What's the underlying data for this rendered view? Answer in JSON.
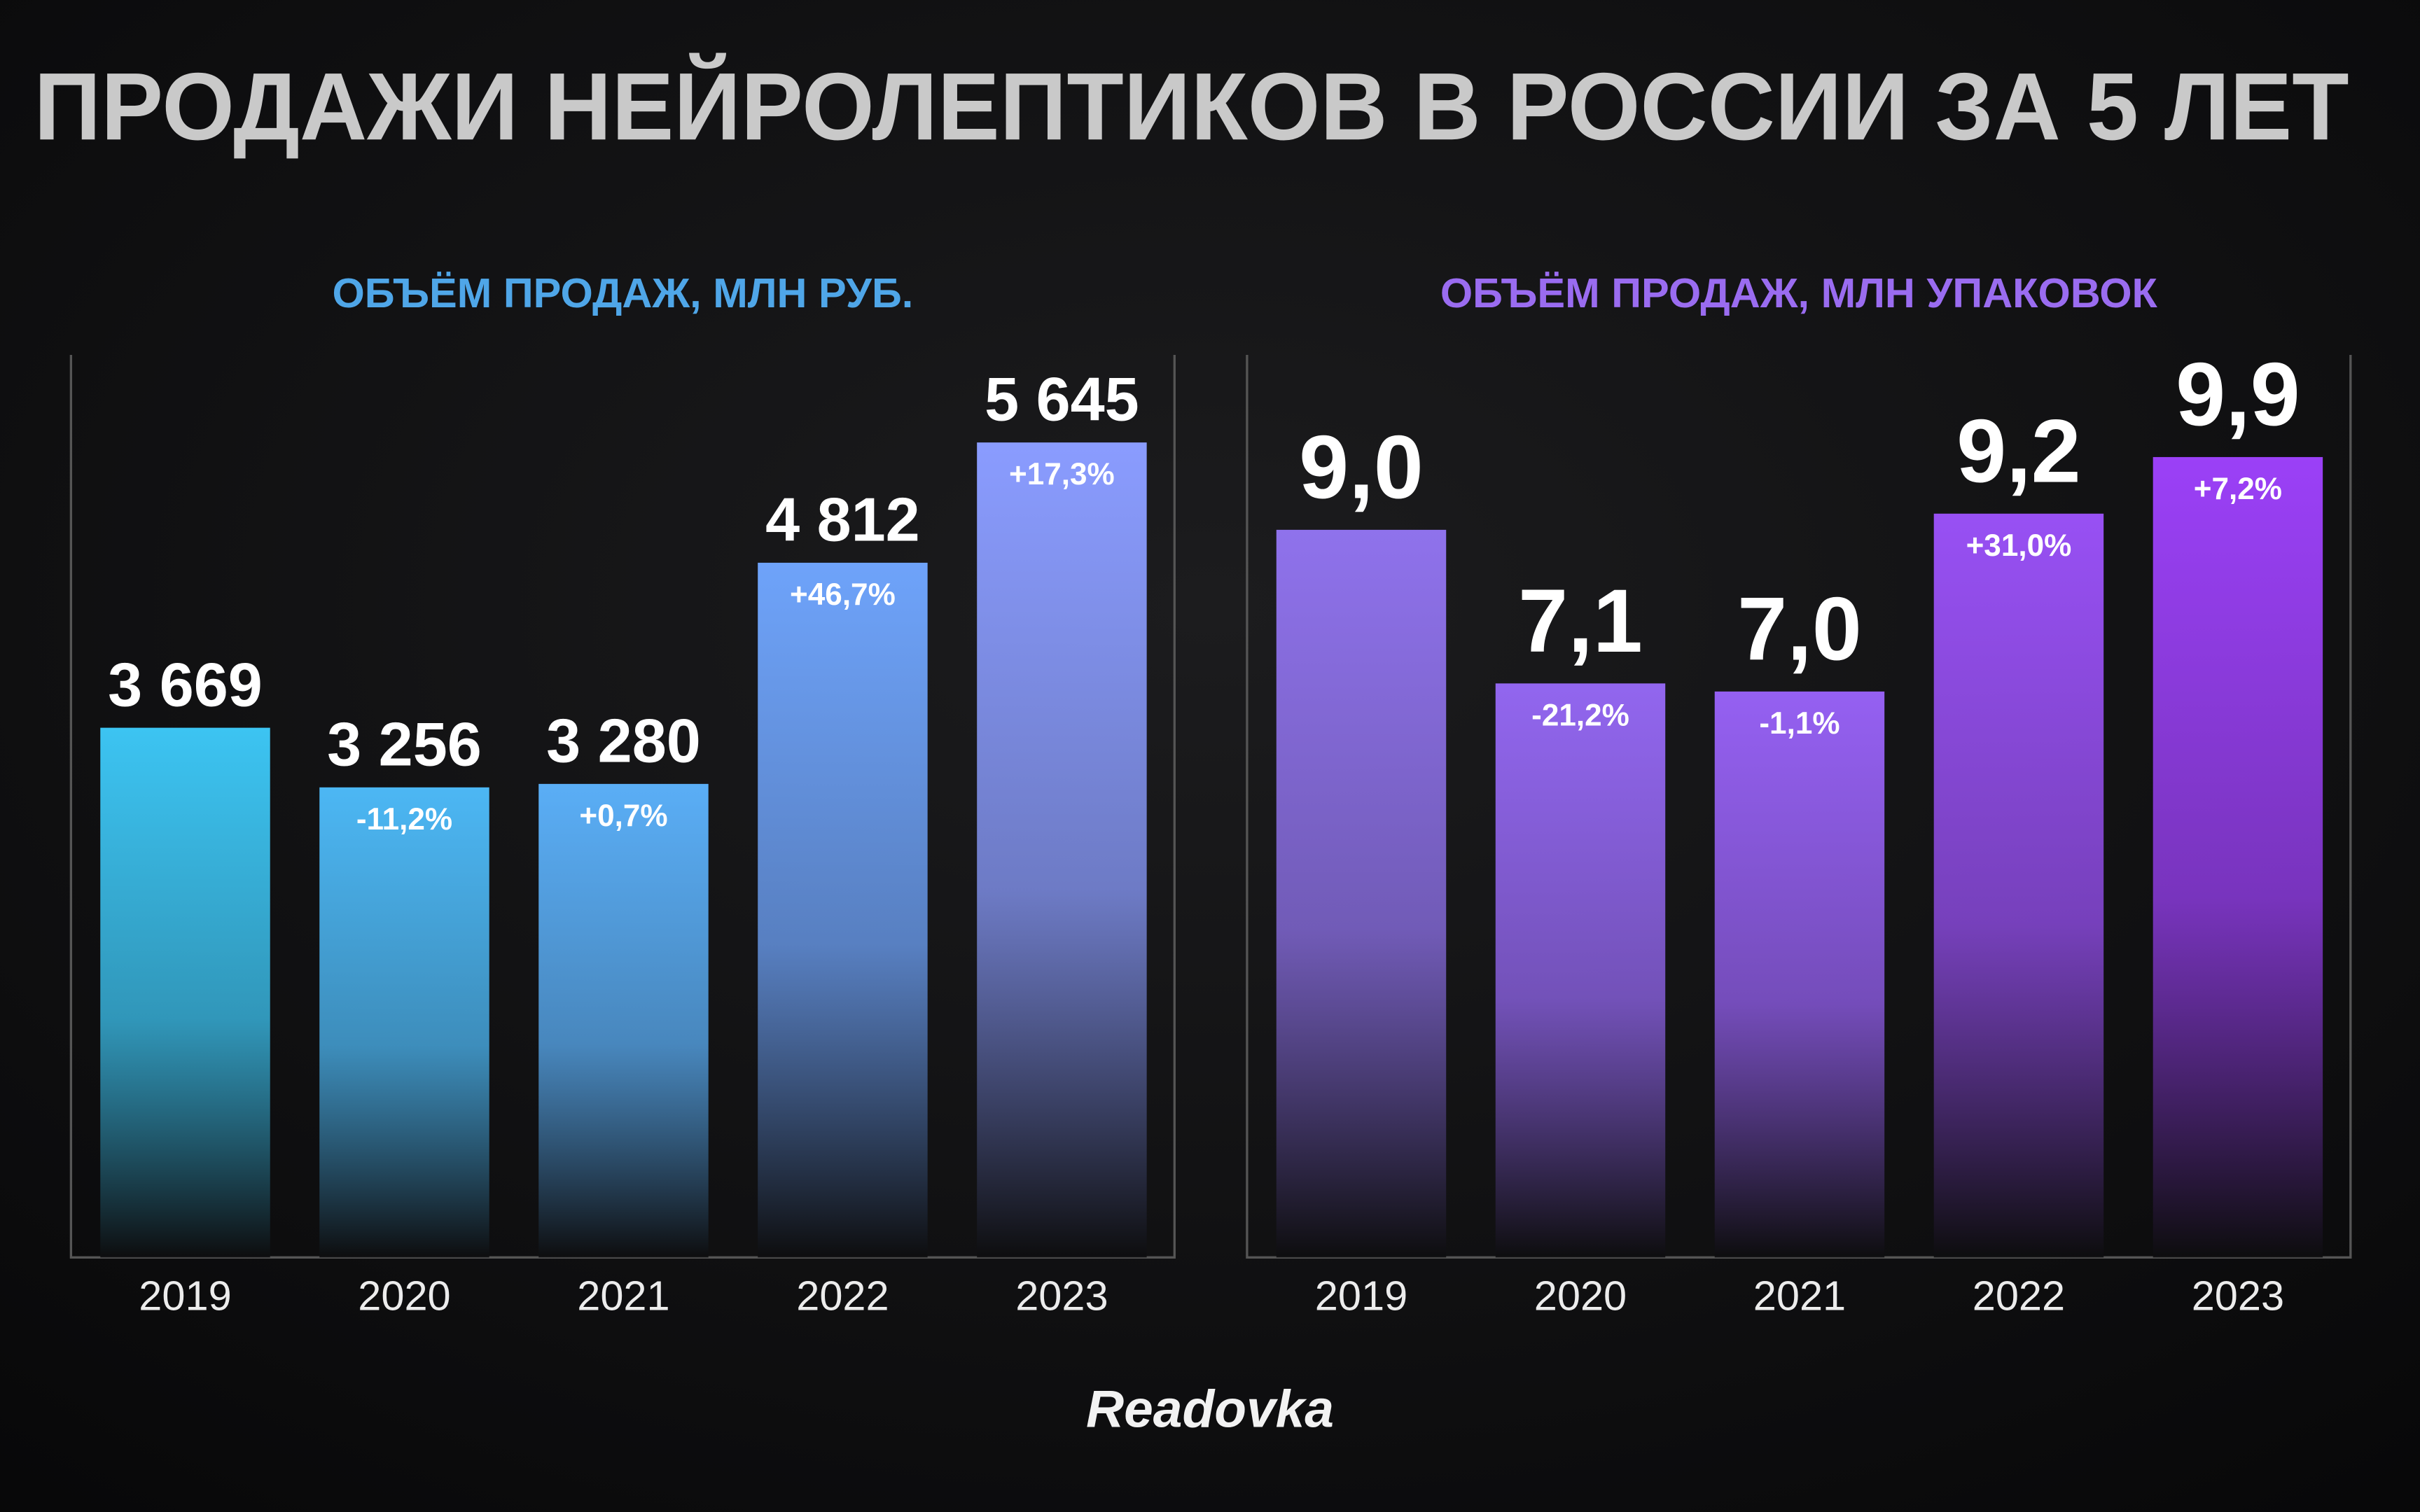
{
  "title": "ПРОДАЖИ НЕЙРОЛЕПТИКОВ В РОССИИ ЗА 5 ЛЕТ",
  "footer": "Readovka",
  "chart_data": [
    {
      "type": "bar",
      "title": "ОБЪЁМ ПРОДАЖ, МЛН РУБ.",
      "title_color": "#4fa6e8",
      "categories": [
        "2019",
        "2020",
        "2021",
        "2022",
        "2023"
      ],
      "values": [
        3669,
        3256,
        3280,
        4812,
        5645
      ],
      "value_labels": [
        "3 669",
        "3 256",
        "3 280",
        "4 812",
        "5 645"
      ],
      "annotations": [
        null,
        "-11,2%",
        "+0,7%",
        "+46,7%",
        "+17,3%"
      ],
      "colors": [
        "#3cc4f2",
        "#4cb7f4",
        "#5aaef6",
        "#6ea3fa",
        "#8a9cff"
      ],
      "ylim": [
        0,
        7000
      ]
    },
    {
      "type": "bar",
      "title": "ОБЪЁМ ПРОДАЖ, МЛН УПАКОВОК",
      "title_color": "#9a6cf0",
      "categories": [
        "2019",
        "2020",
        "2021",
        "2022",
        "2023"
      ],
      "values": [
        9.0,
        7.1,
        7.0,
        9.2,
        9.9
      ],
      "value_labels": [
        "9,0",
        "7,1",
        "7,0",
        "9,2",
        "9,9"
      ],
      "annotations": [
        null,
        "-21,2%",
        "-1,1%",
        "+31,0%",
        "+7,2%"
      ],
      "colors": [
        "#8f72ec",
        "#9266ef",
        "#9560f2",
        "#9850f4",
        "#9b40f7"
      ],
      "ylim": [
        0,
        12.5
      ]
    }
  ]
}
